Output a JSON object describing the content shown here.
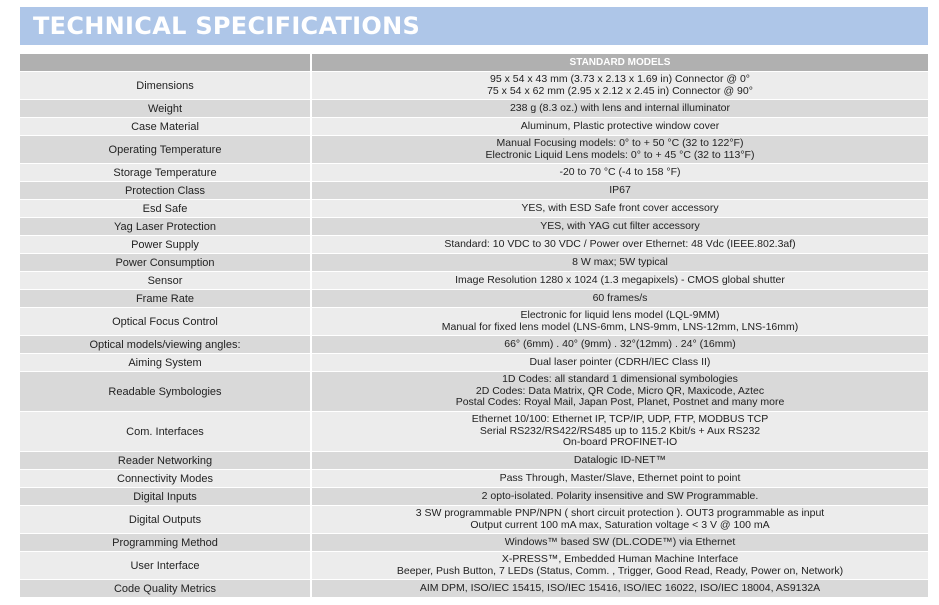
{
  "title": "TECHNICAL SPECIFICATIONS",
  "table": {
    "header": [
      "",
      "STANDARD MODELS"
    ],
    "rows": [
      {
        "label": "Dimensions",
        "value": [
          "95 x 54 x 43 mm (3.73 x 2.13 x 1.69 in) Connector @ 0°",
          "75 x 54 x 62 mm (2.95 x 2.12 x 2.45 in) Connector @ 90°"
        ]
      },
      {
        "label": "Weight",
        "value": [
          "238 g (8.3 oz.) with lens and internal illuminator"
        ]
      },
      {
        "label": "Case Material",
        "value": [
          "Aluminum, Plastic protective window cover"
        ]
      },
      {
        "label": "Operating Temperature",
        "value": [
          "Manual Focusing models: 0° to + 50 °C (32 to 122°F)",
          "Electronic Liquid Lens models: 0° to + 45 °C (32 to 113°F)"
        ]
      },
      {
        "label": "Storage Temperature",
        "value": [
          "-20 to 70 °C (-4 to 158 °F)"
        ]
      },
      {
        "label": "Protection Class",
        "value": [
          "IP67"
        ]
      },
      {
        "label": "Esd Safe",
        "value": [
          "YES, with ESD Safe front cover accessory"
        ]
      },
      {
        "label": "Yag Laser Protection",
        "value": [
          "YES, with YAG cut filter accessory"
        ]
      },
      {
        "label": "Power Supply",
        "value": [
          "Standard: 10 VDC to 30 VDC / Power over Ethernet:  48 Vdc (IEEE.802.3af)"
        ]
      },
      {
        "label": "Power Consumption",
        "value": [
          "8 W max; 5W typical"
        ]
      },
      {
        "label": "Sensor",
        "value": [
          "Image Resolution 1280 x 1024 (1.3 megapixels) -  CMOS global shutter"
        ]
      },
      {
        "label": "Frame Rate",
        "value": [
          "60 frames/s"
        ]
      },
      {
        "label": "Optical Focus Control",
        "value": [
          "Electronic for liquid lens model (LQL-9MM)",
          "Manual for fixed lens model (LNS-6mm, LNS-9mm, LNS-12mm, LNS-16mm)"
        ]
      },
      {
        "label": "Optical models/viewing angles:",
        "value": [
          "66° (6mm) . 40° (9mm) . 32°(12mm) . 24° (16mm)"
        ]
      },
      {
        "label": "Aiming System",
        "value": [
          "Dual laser pointer (CDRH/IEC Class II)"
        ]
      },
      {
        "label": "Readable Symbologies",
        "value": [
          "1D Codes:  all standard 1 dimensional symbologies",
          "2D Codes: Data Matrix, QR Code, Micro QR, Maxicode, Aztec",
          "Postal Codes: Royal Mail, Japan Post, Planet, Postnet and many more"
        ]
      },
      {
        "label": "Com. Interfaces",
        "value": [
          "Ethernet 10/100: Ethernet IP, TCP/IP, UDP, FTP, MODBUS TCP",
          "Serial RS232/RS422/RS485 up to 115.2 Kbit/s + Aux RS232",
          "On-board PROFINET-IO"
        ]
      },
      {
        "label": "Reader Networking",
        "value": [
          "Datalogic ID-NET™"
        ]
      },
      {
        "label": "Connectivity Modes",
        "value": [
          "Pass Through, Master/Slave, Ethernet point to point"
        ]
      },
      {
        "label": "Digital Inputs",
        "value": [
          "2 opto-isolated. Polarity insensitive and SW Programmable."
        ]
      },
      {
        "label": "Digital Outputs",
        "value": [
          "3  SW programmable PNP/NPN ( short circuit protection ). OUT3 programmable as input",
          "Output current 100 mA max, Saturation voltage < 3 V @ 100 mA"
        ]
      },
      {
        "label": "Programming Method",
        "value": [
          "Windows™ based SW (DL.CODE™) via Ethernet"
        ]
      },
      {
        "label": "User Interface",
        "value": [
          "X-PRESS™, Embedded Human Machine Interface",
          "Beeper, Push Button, 7 LEDs (Status, Comm. , Trigger, Good Read, Ready, Power on, Network)"
        ]
      },
      {
        "label": "Code Quality Metrics",
        "value": [
          "AIM DPM, ISO/IEC 15415, ISO/IEC 15416, ISO/IEC 16022, ISO/IEC 18004, AS9132A"
        ]
      }
    ]
  }
}
